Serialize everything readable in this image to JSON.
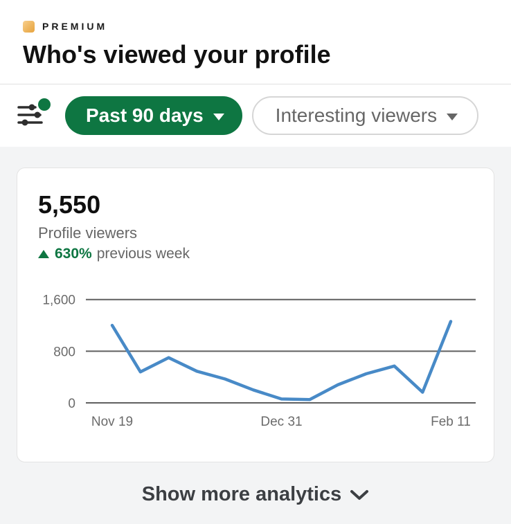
{
  "header": {
    "premium_label": "PREMIUM",
    "title": "Who's viewed your profile"
  },
  "filters": {
    "time_range_label": "Past 90 days",
    "viewer_type_label": "Interesting viewers",
    "filter_icon_has_notification_dot": true
  },
  "card": {
    "stat_value": "5,550",
    "stat_label": "Profile viewers",
    "delta_pct": "630%",
    "delta_label": "previous week",
    "delta_direction": "up"
  },
  "footer": {
    "show_more_label": "Show more analytics"
  },
  "colors": {
    "green": "#0e7642",
    "line_blue": "#488ac7",
    "gridline": "#5f5f5f",
    "gold_light": "#f8d08e",
    "gold_dark": "#e7a33e",
    "text_gray": "#666666",
    "text_dark": "#111111",
    "page_gray_bg": "#f3f4f5"
  },
  "chart_data": {
    "type": "line",
    "title": "Profile viewers per week, past 90 days",
    "values": [
      1200,
      480,
      700,
      490,
      370,
      200,
      60,
      50,
      280,
      450,
      570,
      165,
      1260
    ],
    "x_labels": [
      "Nov 19",
      "Dec 31",
      "Feb 11"
    ],
    "x_label_indices": [
      0,
      6,
      12
    ],
    "yticks": [
      {
        "value": 0,
        "label": "0"
      },
      {
        "value": 800,
        "label": "800"
      },
      {
        "value": 1600,
        "label": "1,600"
      }
    ],
    "ylim": [
      0,
      1600
    ],
    "grid": "horizontal",
    "legend": "none",
    "line_color": "#488ac7"
  }
}
